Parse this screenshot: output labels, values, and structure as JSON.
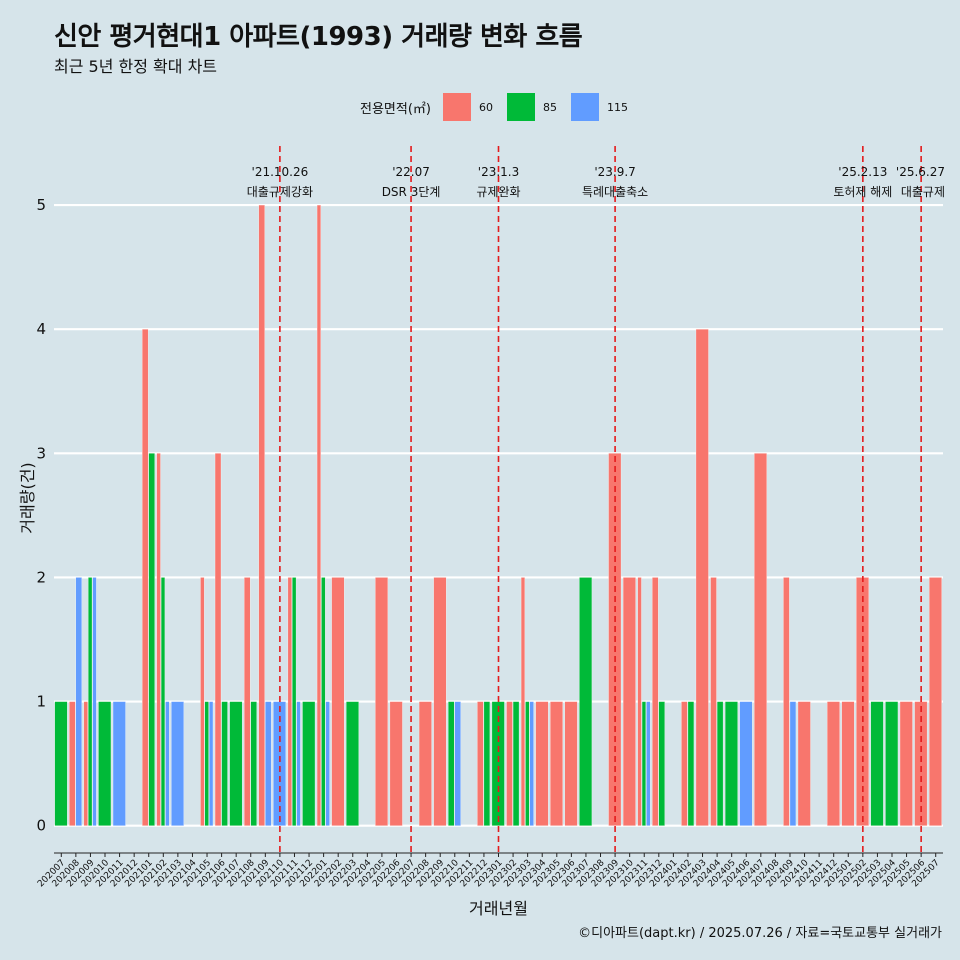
{
  "title": "신안 평거현대1 아파트(1993) 거래량 변화 흐름",
  "subtitle": "최근 5년 한정 확대 차트",
  "caption": "©디아파트(dapt.kr) / 2025.07.26 / 자료=국토교통부 실거래가",
  "legend": {
    "title": "전용면적(㎡)",
    "items": [
      {
        "label": "60",
        "color": "#f8766d"
      },
      {
        "label": "85",
        "color": "#00ba38"
      },
      {
        "label": "115",
        "color": "#619cff"
      }
    ]
  },
  "chart_data": {
    "type": "bar",
    "xlabel": "거래년월",
    "ylabel": "거래량(건)",
    "ylim": [
      -0.22,
      5.5
    ],
    "yticks": [
      0,
      1,
      2,
      3,
      4,
      5
    ],
    "grid": true,
    "legend_position": "top",
    "categories": [
      "202007",
      "202008",
      "202009",
      "202010",
      "202011",
      "202012",
      "202101",
      "202102",
      "202103",
      "202104",
      "202105",
      "202106",
      "202107",
      "202108",
      "202109",
      "202110",
      "202111",
      "202112",
      "202201",
      "202202",
      "202203",
      "202204",
      "202205",
      "202206",
      "202207",
      "202208",
      "202209",
      "202210",
      "202211",
      "202212",
      "202301",
      "202302",
      "202303",
      "202304",
      "202305",
      "202306",
      "202307",
      "202308",
      "202309",
      "202310",
      "202311",
      "202312",
      "202401",
      "202402",
      "202403",
      "202404",
      "202405",
      "202406",
      "202407",
      "202408",
      "202409",
      "202410",
      "202411",
      "202412",
      "202501",
      "202502",
      "202503",
      "202504",
      "202505",
      "202506",
      "202507"
    ],
    "series": [
      {
        "name": "60",
        "color": "#f8766d",
        "values": [
          0,
          1,
          1,
          0,
          0,
          0,
          4,
          3,
          0,
          0,
          2,
          3,
          0,
          2,
          5,
          0,
          2,
          0,
          5,
          2,
          0,
          0,
          2,
          1,
          0,
          1,
          2,
          0,
          0,
          1,
          0,
          1,
          2,
          1,
          1,
          1,
          0,
          0,
          3,
          2,
          2,
          2,
          0,
          1,
          4,
          2,
          0,
          0,
          3,
          0,
          2,
          1,
          0,
          1,
          1,
          2,
          0,
          0,
          1,
          1,
          2
        ]
      },
      {
        "name": "85",
        "color": "#00ba38",
        "values": [
          1,
          0,
          2,
          1,
          0,
          0,
          3,
          2,
          0,
          0,
          1,
          1,
          1,
          1,
          0,
          0,
          2,
          1,
          2,
          0,
          1,
          0,
          0,
          0,
          0,
          0,
          0,
          1,
          0,
          1,
          1,
          1,
          1,
          0,
          0,
          0,
          2,
          0,
          0,
          0,
          1,
          1,
          0,
          1,
          0,
          1,
          1,
          0,
          0,
          0,
          0,
          0,
          0,
          0,
          0,
          0,
          1,
          1,
          0,
          0,
          0
        ]
      },
      {
        "name": "115",
        "color": "#619cff",
        "values": [
          0,
          2,
          2,
          0,
          1,
          0,
          0,
          1,
          1,
          0,
          1,
          0,
          0,
          0,
          1,
          1,
          1,
          0,
          1,
          0,
          0,
          0,
          0,
          0,
          0,
          0,
          0,
          1,
          0,
          0,
          0,
          0,
          1,
          0,
          0,
          0,
          0,
          0,
          0,
          0,
          1,
          0,
          0,
          0,
          0,
          0,
          0,
          1,
          0,
          0,
          1,
          0,
          0,
          0,
          0,
          0,
          0,
          0,
          0,
          0,
          0
        ]
      }
    ],
    "annotations": [
      {
        "date": "'21.10.26",
        "label": "대출규제강화",
        "x": "202110"
      },
      {
        "date": "'22.07",
        "label": "DSR 3단계",
        "x": "202207"
      },
      {
        "date": "'23.1.3",
        "label": "규제완화",
        "x": "202301"
      },
      {
        "date": "'23.9.7",
        "label": "특례대출축소",
        "x": "202309"
      },
      {
        "date": "'25.2.13",
        "label": "토허제 해제",
        "x": "202502"
      },
      {
        "date": "'25.6.27",
        "label": "대출규제",
        "x": "202506"
      }
    ]
  }
}
